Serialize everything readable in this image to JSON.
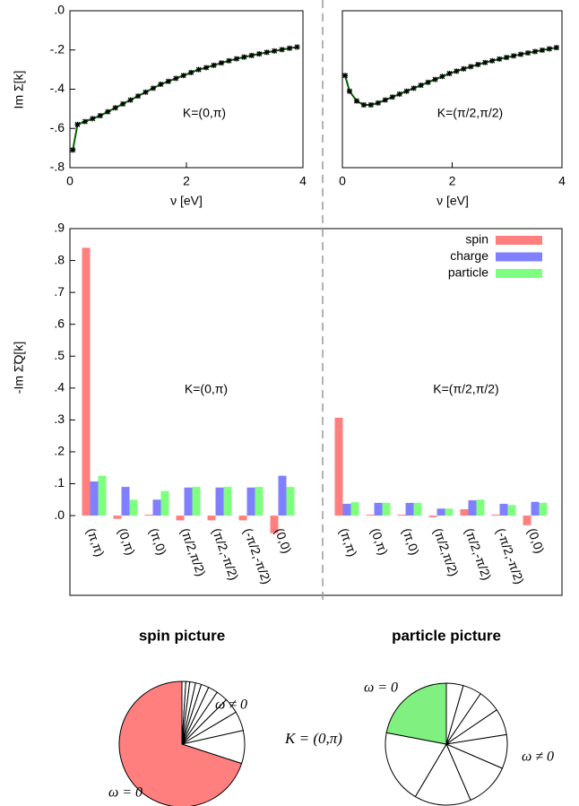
{
  "chart_data": [
    {
      "type": "line",
      "xlim": [
        0,
        4
      ],
      "xticks": [
        0,
        2,
        4
      ],
      "ylim": [
        -0.8,
        0
      ],
      "yticks": [
        {
          "value": 0,
          "label": ".0"
        },
        {
          "value": -0.2,
          "label": "-.2"
        },
        {
          "value": -0.4,
          "label": "-.4"
        },
        {
          "value": -0.6,
          "label": "-.6"
        },
        {
          "value": -0.8,
          "label": "-.8"
        }
      ],
      "xlabel": "ν [eV]",
      "ylabel": "Im Σ[k]",
      "annotation": "K=(0,π)",
      "color": "#006400",
      "x": [
        0.05,
        0.13,
        0.26,
        0.39,
        0.52,
        0.65,
        0.78,
        0.91,
        1.04,
        1.17,
        1.3,
        1.43,
        1.56,
        1.69,
        1.82,
        1.95,
        2.08,
        2.21,
        2.34,
        2.47,
        2.6,
        2.73,
        2.86,
        2.99,
        3.12,
        3.25,
        3.38,
        3.51,
        3.64,
        3.77,
        3.9
      ],
      "values": [
        -0.71,
        -0.58,
        -0.565,
        -0.55,
        -0.535,
        -0.515,
        -0.495,
        -0.475,
        -0.455,
        -0.435,
        -0.415,
        -0.395,
        -0.375,
        -0.36,
        -0.345,
        -0.33,
        -0.315,
        -0.3,
        -0.29,
        -0.278,
        -0.266,
        -0.255,
        -0.245,
        -0.236,
        -0.228,
        -0.22,
        -0.212,
        -0.205,
        -0.198,
        -0.191,
        -0.185
      ]
    },
    {
      "type": "line",
      "xlim": [
        0,
        4
      ],
      "xticks": [
        0,
        2,
        4
      ],
      "ylim": [
        -0.8,
        0
      ],
      "xlabel": "ν [eV]",
      "annotation": "K=(π/2,π/2)",
      "color": "#006400",
      "x": [
        0.05,
        0.13,
        0.26,
        0.39,
        0.52,
        0.65,
        0.78,
        0.91,
        1.04,
        1.17,
        1.3,
        1.43,
        1.56,
        1.69,
        1.82,
        1.95,
        2.08,
        2.21,
        2.34,
        2.47,
        2.6,
        2.73,
        2.86,
        2.99,
        3.12,
        3.25,
        3.38,
        3.51,
        3.64,
        3.77,
        3.9
      ],
      "values": [
        -0.33,
        -0.41,
        -0.46,
        -0.48,
        -0.48,
        -0.47,
        -0.455,
        -0.44,
        -0.425,
        -0.41,
        -0.395,
        -0.38,
        -0.365,
        -0.35,
        -0.335,
        -0.32,
        -0.308,
        -0.296,
        -0.285,
        -0.274,
        -0.264,
        -0.255,
        -0.246,
        -0.238,
        -0.23,
        -0.222,
        -0.215,
        -0.208,
        -0.201,
        -0.194,
        -0.188
      ]
    },
    {
      "type": "bar",
      "ylim": [
        -0.25,
        0.9
      ],
      "yticks": [
        {
          "value": 0,
          "label": ".0"
        },
        {
          "value": 0.1,
          "label": ".1"
        },
        {
          "value": 0.2,
          "label": ".2"
        },
        {
          "value": 0.3,
          "label": ".3"
        },
        {
          "value": 0.4,
          "label": ".4"
        },
        {
          "value": 0.5,
          "label": ".5"
        },
        {
          "value": 0.6,
          "label": ".6"
        },
        {
          "value": 0.7,
          "label": ".7"
        },
        {
          "value": 0.8,
          "label": ".8"
        },
        {
          "value": 0.9,
          "label": ".9"
        }
      ],
      "ylabel": "-Im Σ̃Q[k]",
      "annotations": [
        "K=(0,π)",
        "K=(π/2,π/2)"
      ],
      "legend": "upper right",
      "categories": [
        "(π,π)",
        "(0,π)",
        "(π,0)",
        "(π/2,π/2)",
        "(π/2,-π/2)",
        "(-π/2,-π/2)",
        "(0,0)",
        "(π,π)",
        "(0,π)",
        "(π,0)",
        "(π/2,π/2)",
        "(π/2,-π/2)",
        "(-π/2,-π/2)",
        "(0,0)"
      ],
      "series": [
        {
          "name": "spin",
          "color": "#ff7f7f",
          "values": [
            0.84,
            -0.01,
            0.003,
            -0.015,
            -0.015,
            -0.015,
            -0.055,
            0.307,
            0.003,
            0.003,
            -0.005,
            0.02,
            0.003,
            -0.03
          ]
        },
        {
          "name": "charge",
          "color": "#7f7fff",
          "values": [
            0.107,
            0.09,
            0.05,
            0.088,
            0.088,
            0.088,
            0.125,
            0.037,
            0.04,
            0.04,
            0.022,
            0.048,
            0.037,
            0.043
          ]
        },
        {
          "name": "particle",
          "color": "#7fff7f",
          "values": [
            0.125,
            0.05,
            0.077,
            0.09,
            0.09,
            0.09,
            0.09,
            0.042,
            0.04,
            0.04,
            0.022,
            0.05,
            0.033,
            0.04
          ]
        }
      ]
    },
    {
      "type": "pie",
      "title": "spin picture",
      "series": [
        {
          "name": "ω = 0",
          "color": "#ff7f7f",
          "values": [
            70
          ]
        },
        {
          "name": "ω ≠ 0",
          "color": "#ffffff",
          "values": [
            1,
            1,
            1.5,
            1.5,
            2,
            2.5,
            3,
            4,
            5,
            8.5
          ]
        }
      ]
    },
    {
      "type": "pie",
      "title": "particle picture",
      "series": [
        {
          "name": "ω = 0",
          "color": "#80f080",
          "values": [
            22
          ]
        },
        {
          "name": "ω ≠ 0",
          "color": "#ffffff",
          "values": [
            4.5,
            5,
            6,
            7,
            9,
            12,
            15,
            19.5
          ]
        }
      ]
    }
  ],
  "caption": "K = (0,π)"
}
